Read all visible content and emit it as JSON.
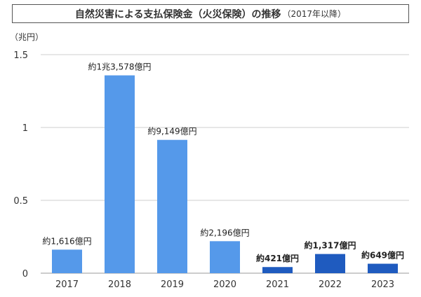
{
  "title": {
    "main": "自然災害による支払保険金（火災保険）の推移",
    "sub": "（2017年以降）"
  },
  "colors": {
    "light_bar": "#5599ea",
    "dark_bar": "#1f5bbf",
    "grid": "#cfcfcf",
    "axis_text": "#333333"
  },
  "chart_data": {
    "type": "bar",
    "title": "自然災害による支払保険金（火災保険）の推移（2017年以降）",
    "ylabel": "（兆円）",
    "xlabel": "",
    "ylim": [
      0,
      1.5
    ],
    "yticks": [
      "0",
      "0.5",
      "1",
      "1.5"
    ],
    "ytick_values": [
      0,
      0.5,
      1,
      1.5
    ],
    "grid": true,
    "categories": [
      "2017",
      "2018",
      "2019",
      "2020",
      "2021",
      "2022",
      "2023"
    ],
    "values": [
      0.1616,
      1.3578,
      0.9149,
      0.2196,
      0.0421,
      0.1317,
      0.0649
    ],
    "labels": [
      "約1,616億円",
      "約1兆3,578億円",
      "約9,149億円",
      "約2,196億円",
      "約421億円",
      "約1,317億円",
      "約649億円"
    ],
    "highlight": [
      false,
      false,
      false,
      false,
      true,
      true,
      true
    ]
  }
}
